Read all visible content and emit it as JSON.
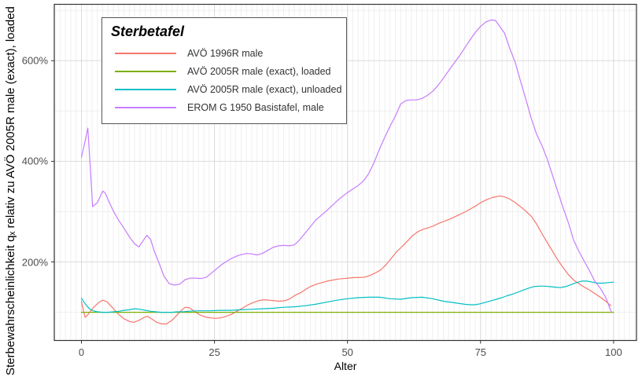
{
  "legend": {
    "title": "Sterbetafel"
  },
  "chart_data": {
    "type": "line",
    "title": "Sterbetafel",
    "xlabel": "Alter",
    "ylabel": "Sterbewahrscheinlichkeit  qₓ relativ zu AVÖ 2005R male (exact), loaded",
    "xlim": [
      -5.1,
      104.3
    ],
    "ylim": [
      44,
      712
    ],
    "x_ticks": [
      0,
      25,
      50,
      75,
      100
    ],
    "x_minor_step": 1,
    "y_ticks_pct": [
      200,
      400,
      600
    ],
    "y_tick_labels": [
      "200%",
      "400%",
      "600%"
    ],
    "y_minor": [
      100,
      300,
      500,
      700
    ],
    "grid": "major+minor",
    "legend_position": "top-left-inside",
    "series": [
      {
        "name": "AVÖ 1996R male",
        "color": "#F8766D",
        "points": [
          [
            0,
            122
          ],
          [
            0.4,
            102
          ],
          [
            0.7,
            90
          ],
          [
            1.2,
            95
          ],
          [
            1.8,
            104
          ],
          [
            2.5,
            112
          ],
          [
            3.2,
            119
          ],
          [
            4,
            124
          ],
          [
            4.8,
            121
          ],
          [
            5.5,
            113
          ],
          [
            6.3,
            104
          ],
          [
            7,
            96
          ],
          [
            8,
            87
          ],
          [
            9,
            82
          ],
          [
            9.8,
            80
          ],
          [
            10.8,
            84
          ],
          [
            11.8,
            90
          ],
          [
            12.4,
            92
          ],
          [
            13.2,
            87
          ],
          [
            14,
            81
          ],
          [
            15,
            77
          ],
          [
            16,
            77
          ],
          [
            17,
            84
          ],
          [
            18,
            95
          ],
          [
            18.8,
            104
          ],
          [
            19.5,
            110
          ],
          [
            20.3,
            109
          ],
          [
            21.2,
            102
          ],
          [
            22.2,
            95
          ],
          [
            23.2,
            91
          ],
          [
            24.2,
            89
          ],
          [
            25.2,
            88
          ],
          [
            26.2,
            89
          ],
          [
            27.2,
            92
          ],
          [
            28.2,
            96
          ],
          [
            29.2,
            102
          ],
          [
            30.2,
            108
          ],
          [
            31.2,
            114
          ],
          [
            32.2,
            119
          ],
          [
            33.2,
            123
          ],
          [
            34.2,
            125
          ],
          [
            35.2,
            124
          ],
          [
            36.2,
            123
          ],
          [
            37.2,
            122
          ],
          [
            38.2,
            123
          ],
          [
            39.2,
            127
          ],
          [
            40.2,
            134
          ],
          [
            41.2,
            139
          ],
          [
            42.2,
            146
          ],
          [
            43.2,
            152
          ],
          [
            44.2,
            156
          ],
          [
            45.2,
            159
          ],
          [
            46.2,
            162
          ],
          [
            47.2,
            164
          ],
          [
            48.2,
            166
          ],
          [
            49.2,
            167
          ],
          [
            50.2,
            168
          ],
          [
            51.2,
            169
          ],
          [
            52.2,
            169
          ],
          [
            53.2,
            170
          ],
          [
            54.2,
            173
          ],
          [
            55.2,
            178
          ],
          [
            56.2,
            184
          ],
          [
            57.2,
            194
          ],
          [
            58.2,
            207
          ],
          [
            59.2,
            220
          ],
          [
            60.2,
            230
          ],
          [
            61.2,
            241
          ],
          [
            62.2,
            252
          ],
          [
            63.2,
            260
          ],
          [
            64.2,
            265
          ],
          [
            65.2,
            268
          ],
          [
            66.2,
            272
          ],
          [
            67.2,
            277
          ],
          [
            68.2,
            281
          ],
          [
            69.2,
            285
          ],
          [
            70.2,
            290
          ],
          [
            71.2,
            295
          ],
          [
            72.2,
            300
          ],
          [
            73.2,
            306
          ],
          [
            74.2,
            312
          ],
          [
            75.2,
            319
          ],
          [
            76.2,
            324
          ],
          [
            77.2,
            328
          ],
          [
            78,
            330
          ],
          [
            78.8,
            331
          ],
          [
            79.6,
            329
          ],
          [
            80.5,
            325
          ],
          [
            81.5,
            318
          ],
          [
            82.5,
            310
          ],
          [
            83.5,
            301
          ],
          [
            84.5,
            291
          ],
          [
            85.5,
            276
          ],
          [
            86.5,
            257
          ],
          [
            87.5,
            239
          ],
          [
            88.5,
            222
          ],
          [
            89.5,
            204
          ],
          [
            90.5,
            189
          ],
          [
            91.5,
            175
          ],
          [
            92.5,
            164
          ],
          [
            93.5,
            157
          ],
          [
            94.5,
            150
          ],
          [
            95.5,
            144
          ],
          [
            96.5,
            137
          ],
          [
            97.5,
            130
          ],
          [
            98.5,
            122
          ],
          [
            99.5,
            113
          ]
        ]
      },
      {
        "name": "AVÖ 2005R male (exact), loaded",
        "color": "#7CAE00",
        "points": [
          [
            0,
            100
          ],
          [
            100,
            100
          ]
        ]
      },
      {
        "name": "AVÖ 2005R male (exact), unloaded",
        "color": "#00BFC4",
        "points": [
          [
            0,
            128
          ],
          [
            0.7,
            117
          ],
          [
            1.5,
            107
          ],
          [
            2.2,
            103
          ],
          [
            3,
            101
          ],
          [
            4,
            100
          ],
          [
            5,
            100
          ],
          [
            6,
            101
          ],
          [
            7,
            102
          ],
          [
            8,
            104
          ],
          [
            9,
            105
          ],
          [
            10,
            107
          ],
          [
            11,
            106
          ],
          [
            12,
            104
          ],
          [
            13,
            102
          ],
          [
            14,
            101
          ],
          [
            15,
            100
          ],
          [
            16,
            100
          ],
          [
            17,
            100
          ],
          [
            18,
            101
          ],
          [
            19,
            101
          ],
          [
            20,
            102
          ],
          [
            22,
            103
          ],
          [
            24,
            103
          ],
          [
            26,
            104
          ],
          [
            28,
            104
          ],
          [
            30,
            105
          ],
          [
            32,
            106
          ],
          [
            34,
            107
          ],
          [
            36,
            108
          ],
          [
            38,
            110
          ],
          [
            40,
            111
          ],
          [
            42,
            113
          ],
          [
            44,
            116
          ],
          [
            46,
            120
          ],
          [
            48,
            124
          ],
          [
            50,
            127
          ],
          [
            52,
            129
          ],
          [
            54,
            130
          ],
          [
            56,
            130
          ],
          [
            58,
            127
          ],
          [
            60,
            126
          ],
          [
            62,
            129
          ],
          [
            64,
            130
          ],
          [
            66,
            127
          ],
          [
            68,
            122
          ],
          [
            70,
            119
          ],
          [
            72,
            116
          ],
          [
            73,
            115
          ],
          [
            74,
            115
          ],
          [
            75,
            117
          ],
          [
            76,
            120
          ],
          [
            77,
            123
          ],
          [
            78,
            126
          ],
          [
            79,
            129
          ],
          [
            80,
            133
          ],
          [
            81,
            136
          ],
          [
            82,
            140
          ],
          [
            83,
            144
          ],
          [
            84,
            148
          ],
          [
            85,
            151
          ],
          [
            86,
            152
          ],
          [
            87,
            152
          ],
          [
            88,
            151
          ],
          [
            89,
            150
          ],
          [
            90,
            149
          ],
          [
            91,
            151
          ],
          [
            92,
            155
          ],
          [
            93,
            159
          ],
          [
            94,
            162
          ],
          [
            95,
            162
          ],
          [
            96,
            160
          ],
          [
            97,
            158
          ],
          [
            98,
            158
          ],
          [
            99,
            159
          ],
          [
            100,
            160
          ]
        ]
      },
      {
        "name": "EROM G 1950 Basistafel, male",
        "color": "#C77CFF",
        "points": [
          [
            0,
            408
          ],
          [
            0.6,
            436
          ],
          [
            1.2,
            466
          ],
          [
            1.6,
            400
          ],
          [
            2.1,
            310
          ],
          [
            3,
            318
          ],
          [
            4,
            341
          ],
          [
            4.5,
            337
          ],
          [
            5,
            324
          ],
          [
            6,
            301
          ],
          [
            7,
            283
          ],
          [
            8,
            267
          ],
          [
            9,
            250
          ],
          [
            10,
            236
          ],
          [
            10.8,
            230
          ],
          [
            11.5,
            241
          ],
          [
            12.3,
            253
          ],
          [
            13,
            245
          ],
          [
            13.7,
            221
          ],
          [
            14.5,
            200
          ],
          [
            15.5,
            172
          ],
          [
            16.5,
            157
          ],
          [
            17.5,
            154
          ],
          [
            18.5,
            156
          ],
          [
            19.5,
            165
          ],
          [
            20.5,
            168
          ],
          [
            21.5,
            168
          ],
          [
            22.5,
            167
          ],
          [
            23.5,
            170
          ],
          [
            25,
            183
          ],
          [
            26.5,
            196
          ],
          [
            28,
            206
          ],
          [
            29.5,
            213
          ],
          [
            31,
            217
          ],
          [
            32,
            216
          ],
          [
            33,
            214
          ],
          [
            34,
            217
          ],
          [
            35,
            223
          ],
          [
            36,
            229
          ],
          [
            37,
            232
          ],
          [
            38,
            233
          ],
          [
            39,
            232
          ],
          [
            40,
            234
          ],
          [
            41,
            244
          ],
          [
            42,
            257
          ],
          [
            43,
            270
          ],
          [
            44,
            283
          ],
          [
            45,
            292
          ],
          [
            46,
            301
          ],
          [
            47,
            311
          ],
          [
            48,
            321
          ],
          [
            49,
            330
          ],
          [
            50,
            338
          ],
          [
            51,
            345
          ],
          [
            52,
            352
          ],
          [
            53,
            361
          ],
          [
            54,
            376
          ],
          [
            55,
            398
          ],
          [
            56,
            424
          ],
          [
            57,
            448
          ],
          [
            58,
            470
          ],
          [
            59,
            490
          ],
          [
            60,
            514
          ],
          [
            61,
            521
          ],
          [
            62,
            522
          ],
          [
            63,
            522
          ],
          [
            64,
            525
          ],
          [
            65,
            531
          ],
          [
            66,
            539
          ],
          [
            67,
            551
          ],
          [
            68,
            565
          ],
          [
            69,
            580
          ],
          [
            70,
            595
          ],
          [
            71,
            609
          ],
          [
            72,
            625
          ],
          [
            73,
            641
          ],
          [
            74,
            656
          ],
          [
            75,
            668
          ],
          [
            76,
            677
          ],
          [
            77,
            681
          ],
          [
            77.8,
            680
          ],
          [
            78.6,
            668
          ],
          [
            79.5,
            655
          ],
          [
            80.5,
            624
          ],
          [
            81.5,
            597
          ],
          [
            82.5,
            560
          ],
          [
            83.5,
            524
          ],
          [
            84.5,
            486
          ],
          [
            85.5,
            455
          ],
          [
            86.5,
            432
          ],
          [
            87.5,
            405
          ],
          [
            88.5,
            373
          ],
          [
            89.5,
            340
          ],
          [
            90.5,
            308
          ],
          [
            91.5,
            278
          ],
          [
            92.5,
            243
          ],
          [
            93.5,
            221
          ],
          [
            94.5,
            201
          ],
          [
            95.5,
            182
          ],
          [
            96.5,
            161
          ],
          [
            97.5,
            148
          ],
          [
            98.5,
            130
          ],
          [
            99.3,
            108
          ],
          [
            99.6,
            100
          ]
        ]
      }
    ]
  }
}
